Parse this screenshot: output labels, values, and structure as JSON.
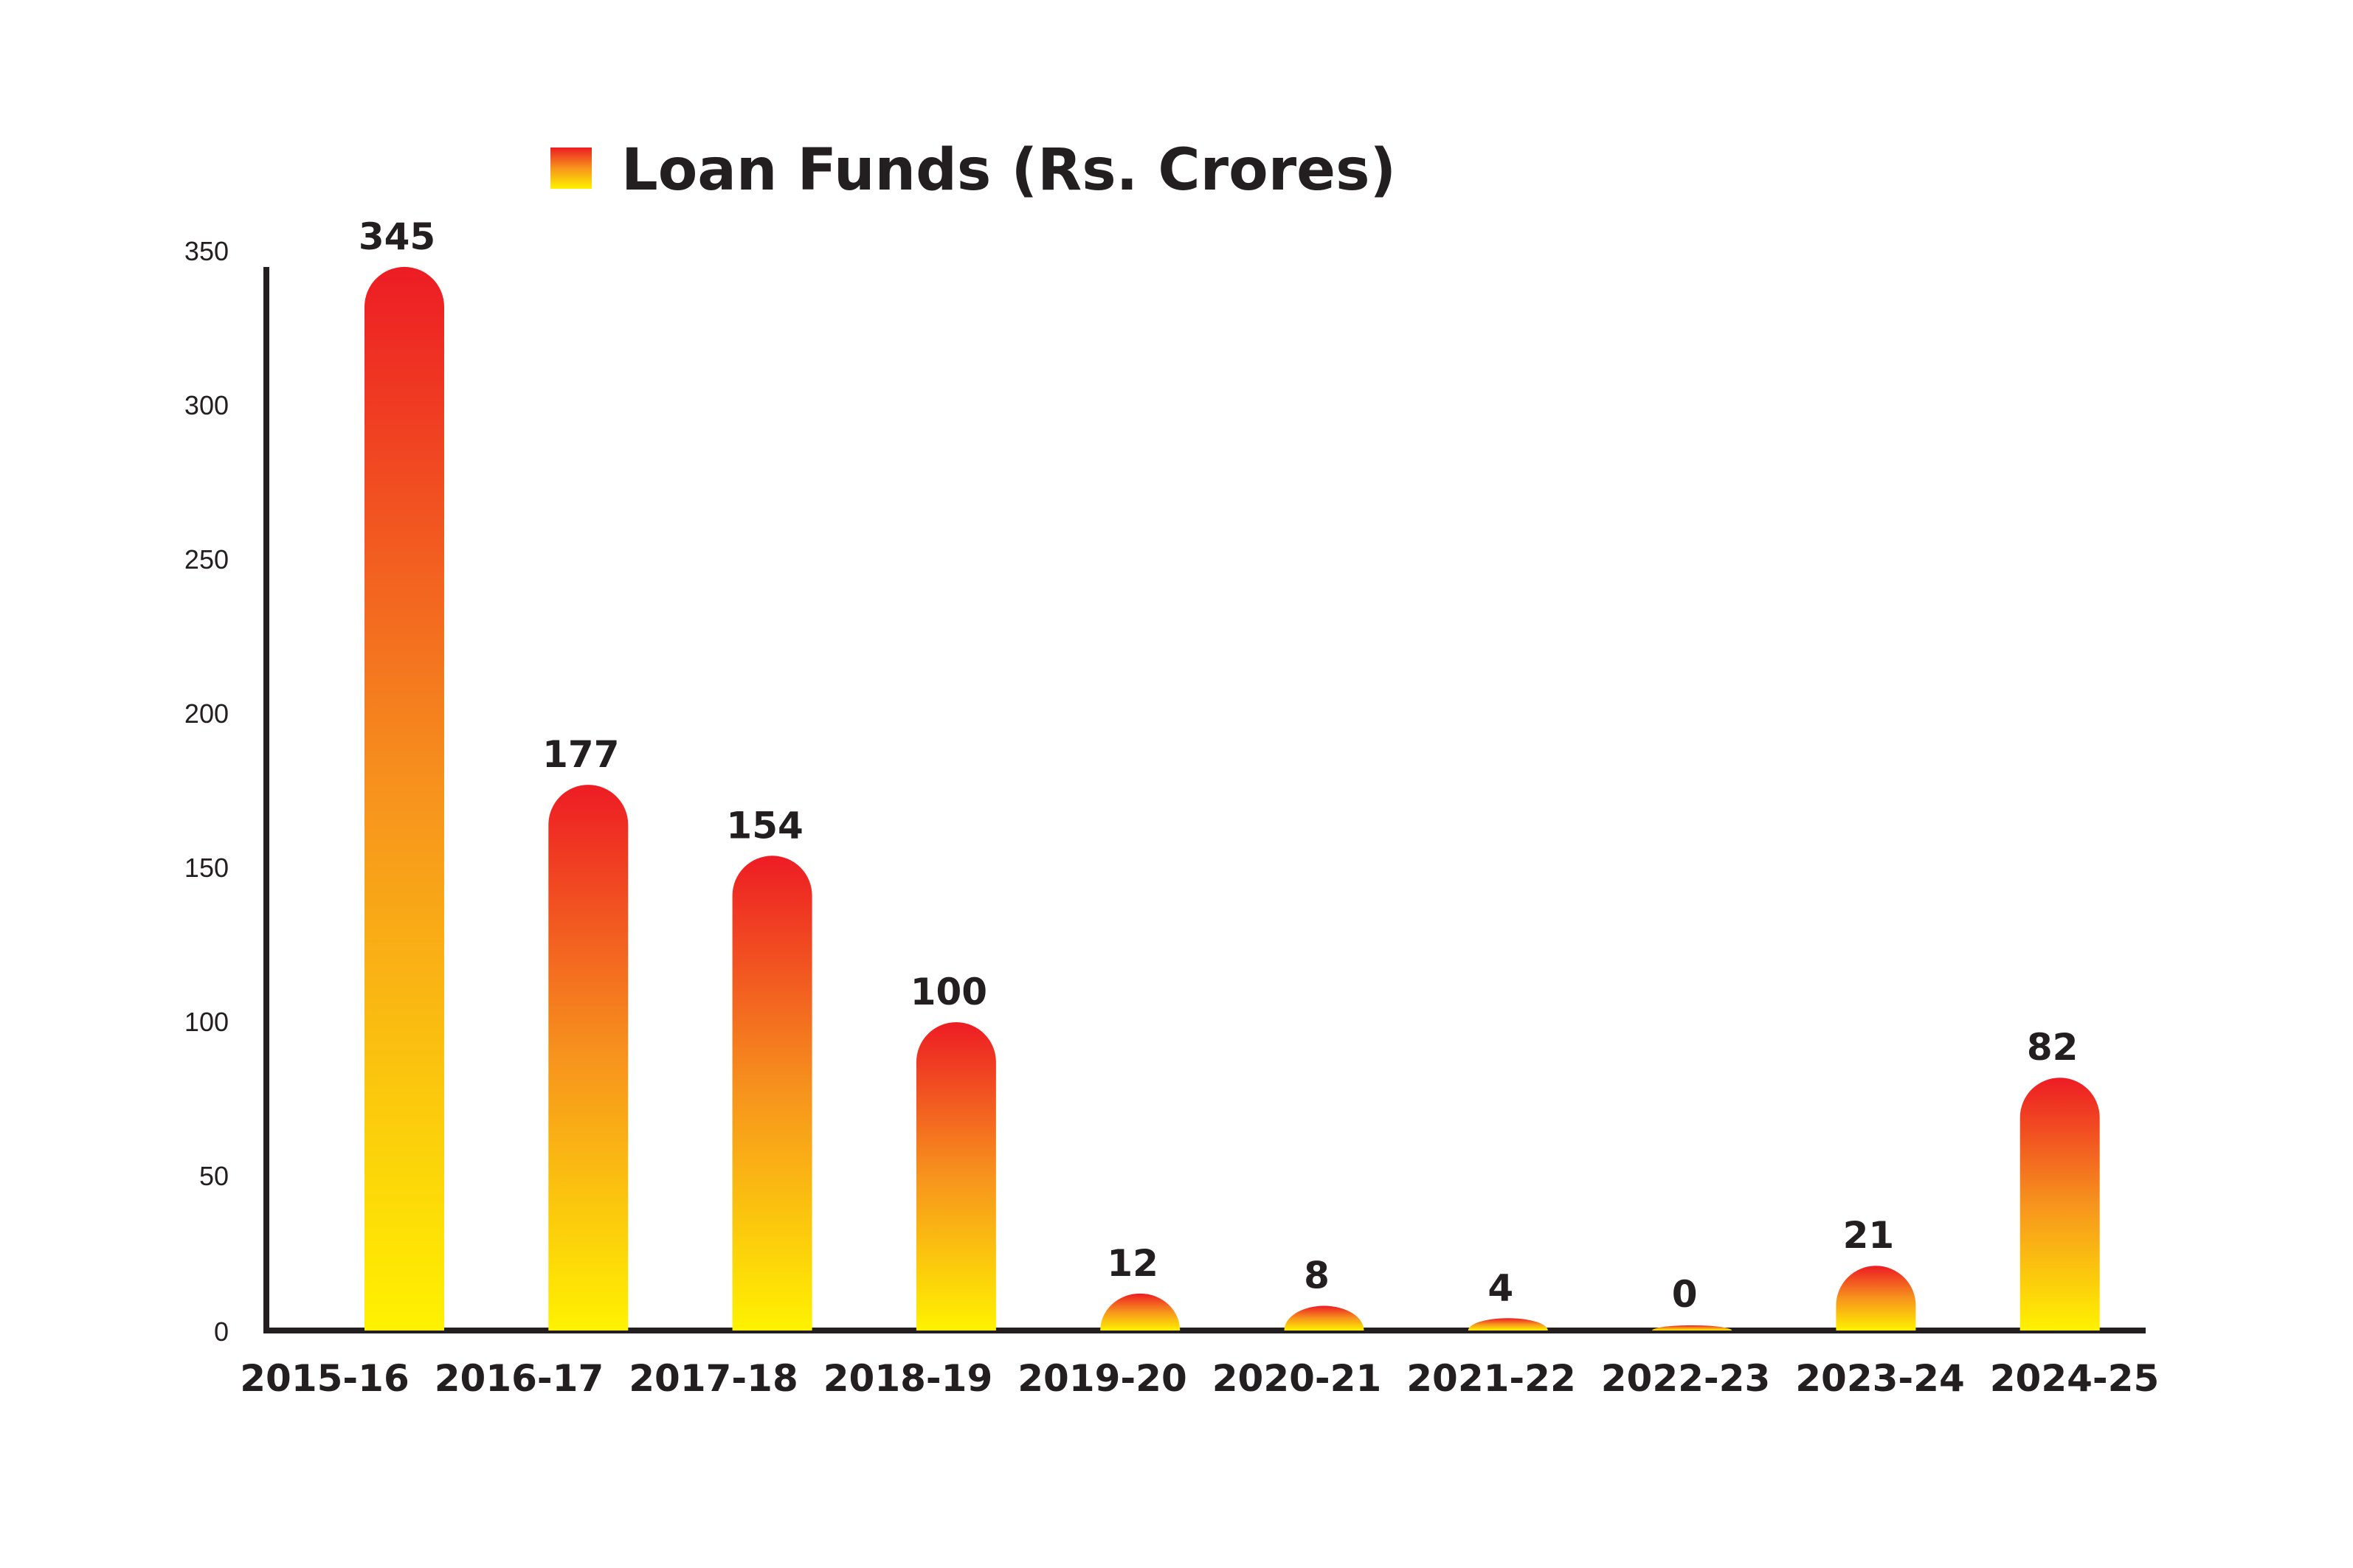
{
  "chart_data": {
    "type": "bar",
    "categories": [
      "2015-16",
      "2016-17",
      "2017-18",
      "2018-19",
      "2019-20",
      "2020-21",
      "2021-22",
      "2022-23",
      "2023-24",
      "2024-25"
    ],
    "series": [
      {
        "name": "Loan Funds (Rs. Crores)",
        "values": [
          345,
          177,
          154,
          100,
          12,
          8,
          4,
          0,
          21,
          82
        ]
      }
    ],
    "data_labels": [
      "345",
      "177",
      "154",
      "100",
      "12",
      "8",
      "4",
      "0",
      "21",
      "82"
    ],
    "yticks": [
      0,
      50,
      100,
      150,
      200,
      250,
      300,
      350
    ],
    "ytick_labels": [
      "0",
      "50",
      "100",
      "150",
      "200",
      "250",
      "300",
      "350"
    ],
    "ylim": [
      0,
      350
    ],
    "title": "",
    "xlabel": "",
    "ylabel": "",
    "grid": false,
    "legend_position": "top-center",
    "bar_style": "rounded-top",
    "colors": {
      "bar_top": "#ed1c24",
      "bar_middle": "#f7941d",
      "bar_bottom": "#fff200",
      "axis": "#231f20",
      "text": "#231f20"
    }
  }
}
